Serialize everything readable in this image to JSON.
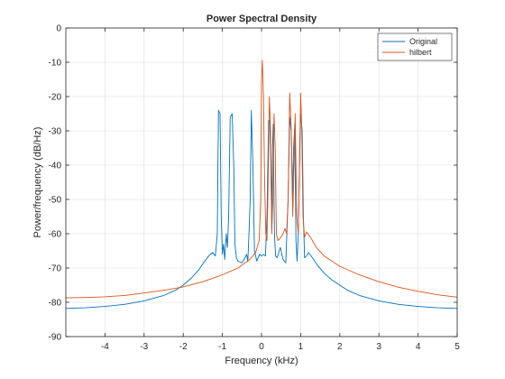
{
  "chart_data": {
    "type": "line",
    "title": "Power Spectral Density",
    "xlabel": "Frequency (kHz)",
    "ylabel": "Power/frequency (dB/Hz)",
    "xlim": [
      -5,
      5
    ],
    "ylim": [
      -90,
      0
    ],
    "xticks": [
      -4,
      -3,
      -2,
      -1,
      0,
      1,
      2,
      3,
      4,
      5
    ],
    "yticks": [
      0,
      -10,
      -20,
      -30,
      -40,
      -50,
      -60,
      -70,
      -80,
      -90
    ],
    "grid": true,
    "legend_position": "top-right",
    "series": [
      {
        "name": "Original",
        "color": "#0072BD",
        "points": [
          [
            -5.0,
            -81.8
          ],
          [
            -4.5,
            -81.6
          ],
          [
            -4.0,
            -81.2
          ],
          [
            -3.5,
            -80.6
          ],
          [
            -3.0,
            -79.6
          ],
          [
            -2.5,
            -78.0
          ],
          [
            -2.2,
            -76.5
          ],
          [
            -2.0,
            -75.0
          ],
          [
            -1.8,
            -73.0
          ],
          [
            -1.6,
            -70.5
          ],
          [
            -1.45,
            -68.0
          ],
          [
            -1.35,
            -66.5
          ],
          [
            -1.25,
            -65.5
          ],
          [
            -1.18,
            -66.5
          ],
          [
            -1.13,
            -60.0
          ],
          [
            -1.1,
            -24.0
          ],
          [
            -1.06,
            -25.0
          ],
          [
            -1.03,
            -55.0
          ],
          [
            -1.0,
            -66.0
          ],
          [
            -0.97,
            -63.0
          ],
          [
            -0.94,
            -67.5
          ],
          [
            -0.9,
            -60.0
          ],
          [
            -0.87,
            -64.0
          ],
          [
            -0.84,
            -55.0
          ],
          [
            -0.8,
            -26.0
          ],
          [
            -0.75,
            -25.0
          ],
          [
            -0.71,
            -40.0
          ],
          [
            -0.68,
            -63.0
          ],
          [
            -0.64,
            -67.0
          ],
          [
            -0.6,
            -68.0
          ],
          [
            -0.5,
            -68.5
          ],
          [
            -0.42,
            -67.0
          ],
          [
            -0.38,
            -66.0
          ],
          [
            -0.35,
            -68.0
          ],
          [
            -0.32,
            -60.0
          ],
          [
            -0.29,
            -50.0
          ],
          [
            -0.26,
            -24.0
          ],
          [
            -0.22,
            -40.0
          ],
          [
            -0.18,
            -65.0
          ],
          [
            -0.12,
            -68.0
          ],
          [
            -0.05,
            -66.0
          ],
          [
            0.0,
            -66.5
          ],
          [
            0.05,
            -66.0
          ],
          [
            0.1,
            -66.5
          ],
          [
            0.14,
            -55.0
          ],
          [
            0.18,
            -27.0
          ],
          [
            0.21,
            -27.0
          ],
          [
            0.24,
            -40.0
          ],
          [
            0.26,
            -54.0
          ],
          [
            0.28,
            -35.0
          ],
          [
            0.3,
            -28.0
          ],
          [
            0.33,
            -60.0
          ],
          [
            0.36,
            -66.5
          ],
          [
            0.4,
            -67.0
          ],
          [
            0.48,
            -64.0
          ],
          [
            0.55,
            -67.5
          ],
          [
            0.62,
            -68.5
          ],
          [
            0.68,
            -50.0
          ],
          [
            0.72,
            -26.0
          ],
          [
            0.76,
            -30.0
          ],
          [
            0.79,
            -50.0
          ],
          [
            0.82,
            -35.0
          ],
          [
            0.85,
            -28.0
          ],
          [
            0.88,
            -62.0
          ],
          [
            0.91,
            -68.0
          ],
          [
            0.94,
            -60.0
          ],
          [
            0.97,
            -40.0
          ],
          [
            1.0,
            -25.0
          ],
          [
            1.04,
            -30.0
          ],
          [
            1.07,
            -55.0
          ],
          [
            1.1,
            -67.0
          ],
          [
            1.15,
            -66.5
          ],
          [
            1.2,
            -65.5
          ],
          [
            1.3,
            -67.0
          ],
          [
            1.45,
            -69.5
          ],
          [
            1.6,
            -71.5
          ],
          [
            1.8,
            -73.5
          ],
          [
            2.0,
            -75.0
          ],
          [
            2.2,
            -76.5
          ],
          [
            2.5,
            -78.0
          ],
          [
            3.0,
            -79.6
          ],
          [
            3.5,
            -80.6
          ],
          [
            4.0,
            -81.2
          ],
          [
            4.5,
            -81.6
          ],
          [
            5.0,
            -81.8
          ]
        ]
      },
      {
        "name": "hilbert",
        "color": "#D95319",
        "points": [
          [
            -5.0,
            -78.7
          ],
          [
            -4.5,
            -78.6
          ],
          [
            -4.0,
            -78.4
          ],
          [
            -3.5,
            -78.0
          ],
          [
            -3.0,
            -77.3
          ],
          [
            -2.5,
            -76.5
          ],
          [
            -2.0,
            -75.5
          ],
          [
            -1.5,
            -74.0
          ],
          [
            -1.0,
            -72.0
          ],
          [
            -0.6,
            -70.0
          ],
          [
            -0.3,
            -67.5
          ],
          [
            -0.15,
            -65.5
          ],
          [
            -0.06,
            -62.0
          ],
          [
            -0.02,
            -50.0
          ],
          [
            0.0,
            -15.0
          ],
          [
            0.02,
            -9.5
          ],
          [
            0.05,
            -20.0
          ],
          [
            0.08,
            -45.0
          ],
          [
            0.11,
            -60.0
          ],
          [
            0.14,
            -62.0
          ],
          [
            0.17,
            -45.0
          ],
          [
            0.2,
            -20.0
          ],
          [
            0.23,
            -30.0
          ],
          [
            0.26,
            -60.0
          ],
          [
            0.29,
            -50.0
          ],
          [
            0.32,
            -25.0
          ],
          [
            0.35,
            -35.0
          ],
          [
            0.38,
            -60.0
          ],
          [
            0.42,
            -62.0
          ],
          [
            0.5,
            -61.0
          ],
          [
            0.55,
            -60.0
          ],
          [
            0.6,
            -58.5
          ],
          [
            0.64,
            -60.0
          ],
          [
            0.68,
            -50.0
          ],
          [
            0.72,
            -19.0
          ],
          [
            0.76,
            -30.0
          ],
          [
            0.8,
            -55.0
          ],
          [
            0.83,
            -40.0
          ],
          [
            0.86,
            -25.0
          ],
          [
            0.9,
            -55.0
          ],
          [
            0.94,
            -60.0
          ],
          [
            0.97,
            -40.0
          ],
          [
            1.0,
            -19.0
          ],
          [
            1.03,
            -30.0
          ],
          [
            1.06,
            -55.0
          ],
          [
            1.1,
            -61.0
          ],
          [
            1.15,
            -59.5
          ],
          [
            1.25,
            -61.0
          ],
          [
            1.4,
            -64.0
          ],
          [
            1.6,
            -66.5
          ],
          [
            1.8,
            -68.0
          ],
          [
            2.0,
            -69.5
          ],
          [
            2.5,
            -72.0
          ],
          [
            3.0,
            -74.0
          ],
          [
            3.5,
            -75.6
          ],
          [
            4.0,
            -76.8
          ],
          [
            4.5,
            -77.8
          ],
          [
            5.0,
            -78.5
          ]
        ]
      }
    ]
  }
}
